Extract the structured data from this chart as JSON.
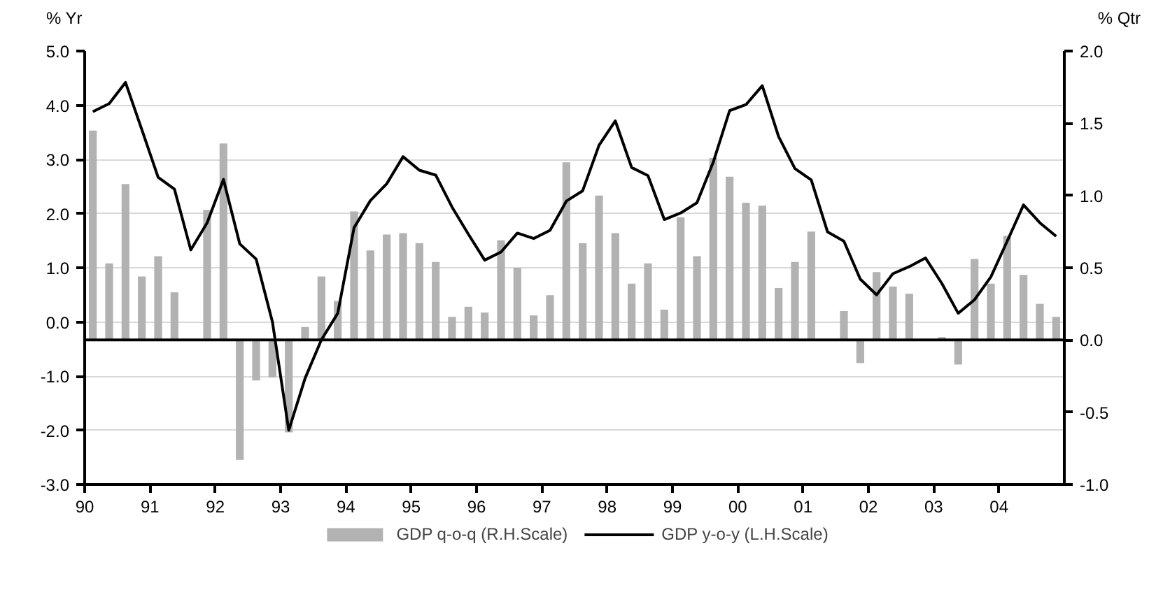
{
  "chart_data": {
    "type": "bar",
    "ylabel": "% Yr",
    "y2label": "% Qtr",
    "x": [
      1990.125,
      1990.375,
      1990.625,
      1990.875,
      1991.125,
      1991.375,
      1991.625,
      1991.875,
      1992.125,
      1992.375,
      1992.625,
      1992.875,
      1993.125,
      1993.375,
      1993.625,
      1993.875,
      1994.125,
      1994.375,
      1994.625,
      1994.875,
      1995.125,
      1995.375,
      1995.625,
      1995.875,
      1996.125,
      1996.375,
      1996.625,
      1996.875,
      1997.125,
      1997.375,
      1997.625,
      1997.875,
      1998.125,
      1998.375,
      1998.625,
      1998.875,
      1999.125,
      1999.375,
      1999.625,
      1999.875,
      2000.125,
      2000.375,
      2000.625,
      2000.875,
      2001.125,
      2001.375,
      2001.625,
      2001.875,
      2002.125,
      2002.375,
      2002.625,
      2002.875,
      2003.125,
      2003.375,
      2003.625,
      2003.875,
      2004.125,
      2004.375,
      2004.625,
      2004.875
    ],
    "series": [
      {
        "name": "GDP q-o-q (R.H.Scale)",
        "axis": "y2",
        "color": "#b2b2b2",
        "values": [
          1.45,
          0.53,
          1.08,
          0.44,
          0.58,
          0.33,
          0,
          0.9,
          1.36,
          -0.83,
          -0.28,
          -0.26,
          -0.64,
          0.09,
          0.44,
          0.27,
          0.89,
          0.62,
          0.73,
          0.74,
          0.67,
          0.54,
          0.16,
          0.23,
          0.19,
          0.69,
          0.5,
          0.17,
          0.31,
          1.23,
          0.67,
          1.0,
          0.74,
          0.39,
          0.53,
          0.21,
          0.85,
          0.58,
          1.26,
          1.13,
          0.95,
          0.93,
          0.36,
          0.54,
          0.75,
          0,
          0.2,
          -0.16,
          0.47,
          0.37,
          0.32,
          0,
          0.02,
          -0.17,
          0.56,
          0.39,
          0.72,
          0.45,
          0.25,
          0.16
        ]
      },
      {
        "name": "GDP y-o-y (L.H.Scale)",
        "type": "line",
        "color": "#000000",
        "values": [
          3.88,
          4.03,
          4.42,
          3.55,
          2.67,
          2.45,
          1.33,
          1.83,
          2.63,
          1.44,
          1.16,
          0.0,
          -2.0,
          -1.04,
          -0.33,
          0.16,
          1.74,
          2.24,
          2.55,
          3.05,
          2.8,
          2.71,
          2.12,
          1.62,
          1.14,
          1.29,
          1.64,
          1.54,
          1.69,
          2.23,
          2.42,
          3.26,
          3.71,
          2.85,
          2.7,
          1.89,
          2.01,
          2.2,
          2.95,
          3.9,
          4.01,
          4.36,
          3.42,
          2.83,
          2.62,
          1.66,
          1.49,
          0.79,
          0.5,
          0.89,
          1.02,
          1.18,
          0.71,
          0.16,
          0.41,
          0.83,
          1.49,
          2.16,
          1.83,
          1.58
        ]
      }
    ],
    "xlim": [
      1990,
      2005
    ],
    "xticks": [
      {
        "value": 1990,
        "label": "90"
      },
      {
        "value": 1991,
        "label": "91"
      },
      {
        "value": 1992,
        "label": "92"
      },
      {
        "value": 1993,
        "label": "93"
      },
      {
        "value": 1994,
        "label": "94"
      },
      {
        "value": 1995,
        "label": "95"
      },
      {
        "value": 1996,
        "label": "96"
      },
      {
        "value": 1997,
        "label": "97"
      },
      {
        "value": 1998,
        "label": "98"
      },
      {
        "value": 1999,
        "label": "99"
      },
      {
        "value": 2000,
        "label": "00"
      },
      {
        "value": 2001,
        "label": "01"
      },
      {
        "value": 2002,
        "label": "02"
      },
      {
        "value": 2003,
        "label": "03"
      },
      {
        "value": 2004,
        "label": "04"
      }
    ],
    "ylim": [
      -3,
      5
    ],
    "yticks": [
      {
        "value": -3,
        "label": "-3.0"
      },
      {
        "value": -2,
        "label": "-2.0"
      },
      {
        "value": -1,
        "label": "-1.0"
      },
      {
        "value": 0,
        "label": "0.0"
      },
      {
        "value": 1,
        "label": "1.0"
      },
      {
        "value": 2,
        "label": "2.0"
      },
      {
        "value": 3,
        "label": "3.0"
      },
      {
        "value": 4,
        "label": "4.0"
      },
      {
        "value": 5,
        "label": "5.0"
      }
    ],
    "y2lim": [
      -1,
      2
    ],
    "y2ticks": [
      {
        "value": -1,
        "label": "-1.0"
      },
      {
        "value": -0.5,
        "label": "-0.5"
      },
      {
        "value": 0,
        "label": "0.0"
      },
      {
        "value": 0.5,
        "label": "0.5"
      },
      {
        "value": 1,
        "label": "1.0"
      },
      {
        "value": 1.5,
        "label": "1.5"
      },
      {
        "value": 2,
        "label": "2.0"
      }
    ],
    "ref_lines": [
      {
        "axis": "y2",
        "value": 0,
        "color": "#000000"
      }
    ],
    "grid": "y",
    "legend": "bottom",
    "marker": "none",
    "line_style": "solid"
  }
}
